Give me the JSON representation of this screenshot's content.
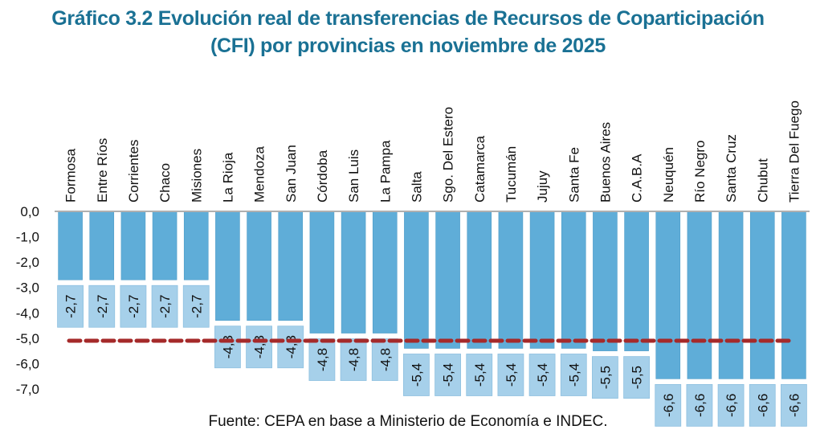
{
  "title_lines": [
    "Gráfico 3.2 Evolución real de transferencias de Recursos de Coparticipación",
    "(CFI) por provincias en noviembre de 2025"
  ],
  "source": "Fuente: CEPA en base a Ministerio de Economía e INDEC.",
  "colors": {
    "title": "#1a7194",
    "bar": "#5fadd8",
    "bar_stroke": "#4f9cc8",
    "label_box": "#a6d0ea",
    "label_box_stroke": "#8fc0e0",
    "reference_line": "#a52a2a",
    "axis_line": "#b0b0b0"
  },
  "chart_data": {
    "type": "bar",
    "title": "Gráfico 3.2 Evolución real de transferencias de Recursos de Coparticipación (CFI) por provincias en noviembre de 2025",
    "xlabel": "",
    "ylabel": "",
    "ylim": [
      -7.0,
      0.0
    ],
    "yticks": [
      0,
      -1,
      -2,
      -3,
      -4,
      -5,
      -6,
      -7
    ],
    "ytick_labels": [
      "0,0",
      "-1,0",
      "-2,0",
      "-3,0",
      "-4,0",
      "-5,0",
      "-6,0",
      "-7,0"
    ],
    "grid": false,
    "categories": [
      "Formosa",
      "Entre Ríos",
      "Corrientes",
      "Chaco",
      "Misiones",
      "La Rioja",
      "Mendoza",
      "San Juan",
      "Córdoba",
      "San Luis",
      "La Pampa",
      "Salta",
      "Sgo. Del Estero",
      "Catamarca",
      "Tucumán",
      "Jujuy",
      "Santa Fe",
      "Buenos Aires",
      "C.A.B.A",
      "Neuquén",
      "Río Negro",
      "Santa Cruz",
      "Chubut",
      "Tierra Del Fuego"
    ],
    "values": [
      -2.7,
      -2.7,
      -2.7,
      -2.7,
      -2.7,
      -4.3,
      -4.3,
      -4.3,
      -4.8,
      -4.8,
      -4.8,
      -5.4,
      -5.4,
      -5.4,
      -5.4,
      -5.4,
      -5.4,
      -5.5,
      -5.5,
      -6.6,
      -6.6,
      -6.6,
      -6.6,
      -6.6
    ],
    "data_labels": [
      "-2,7",
      "-2,7",
      "-2,7",
      "-2,7",
      "-2,7",
      "-4,3",
      "-4,3",
      "-4,3",
      "-4,8",
      "-4,8",
      "-4,8",
      "-5,4",
      "-5,4",
      "-5,4",
      "-5,4",
      "-5,4",
      "-5,4",
      "-5,5",
      "-5,5",
      "-6,6",
      "-6,6",
      "-6,6",
      "-6,6",
      "-6,6"
    ],
    "reference_line": {
      "value": -5.1,
      "style": "dashed"
    },
    "legend": "none"
  }
}
